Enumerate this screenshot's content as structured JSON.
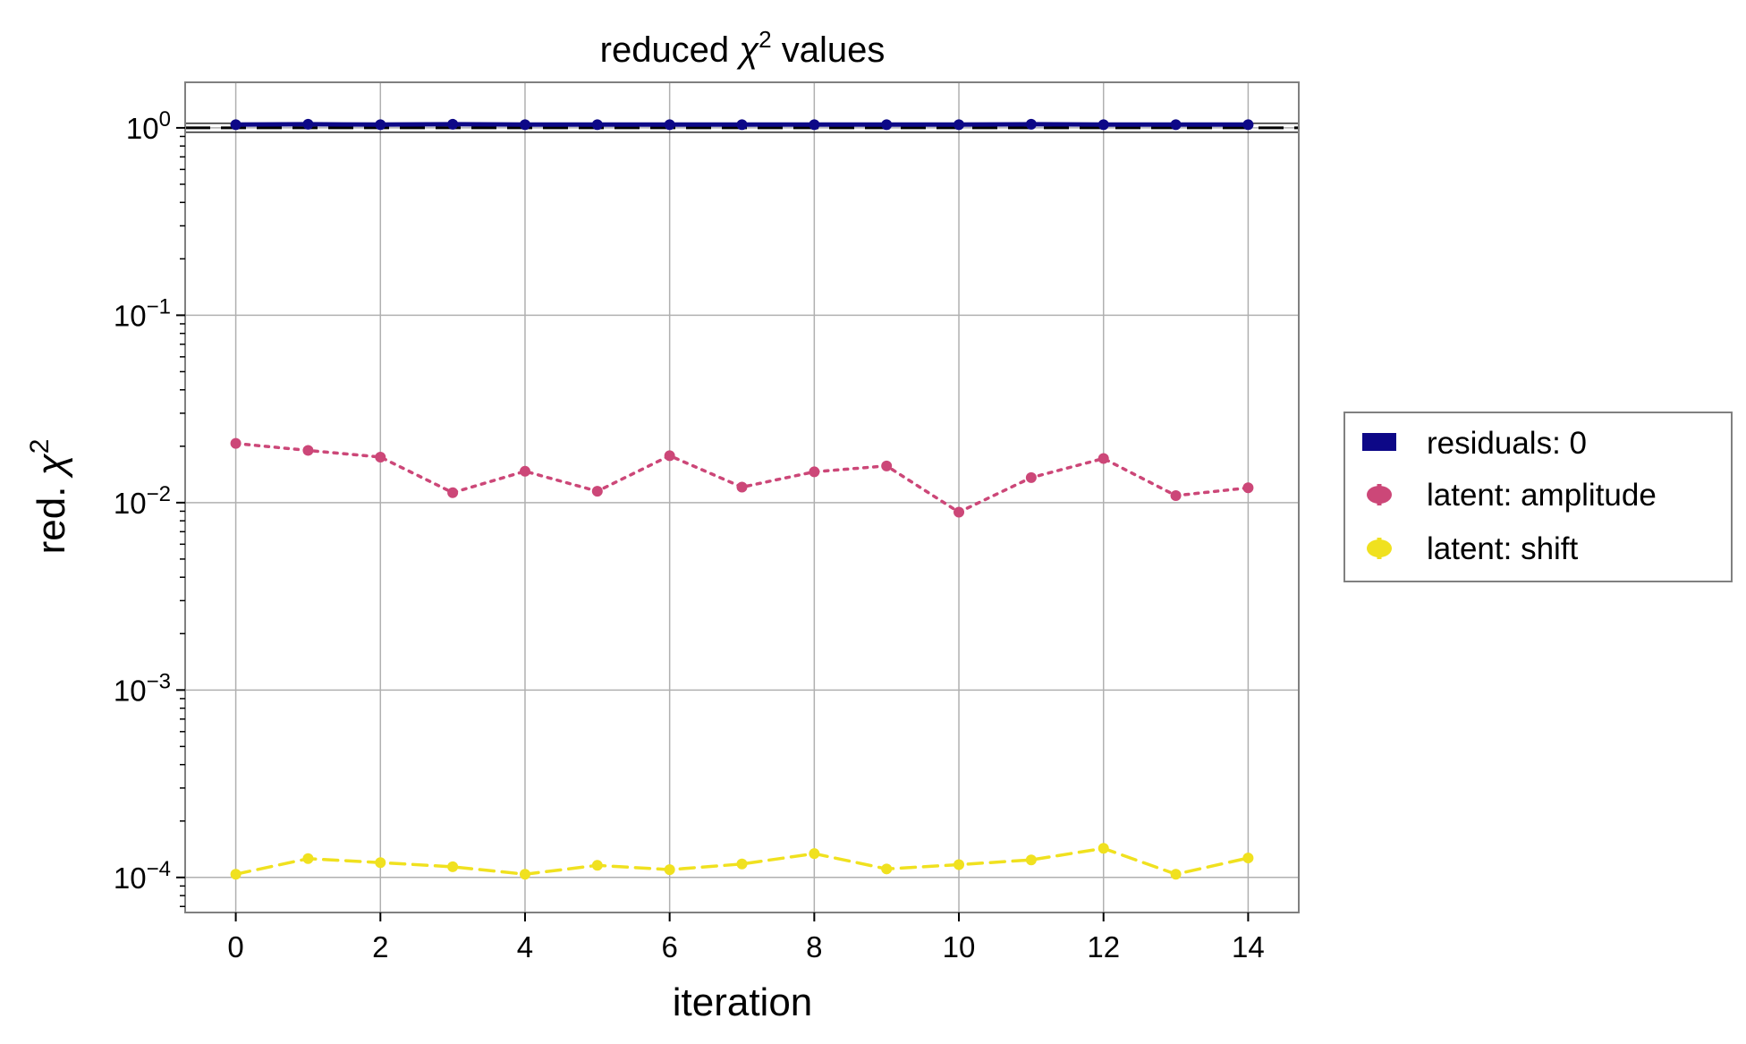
{
  "chart_data": {
    "type": "line",
    "title": "reduced",
    "title_math": {
      "symbol": "χ",
      "superscript": "2"
    },
    "title_suffix": "values",
    "xlabel": "iteration",
    "ylabel": "red.",
    "ylabel_math": {
      "symbol": "χ",
      "superscript": "2"
    },
    "y_scale": "log",
    "xlim": [
      -0.7,
      14.7
    ],
    "ylim": [
      6.5e-05,
      1.75
    ],
    "grid": true,
    "x_ticks": [
      0,
      2,
      4,
      6,
      8,
      10,
      12,
      14
    ],
    "x_tick_labels": [
      "0",
      "2",
      "4",
      "6",
      "8",
      "10",
      "12",
      "14"
    ],
    "y_ticks": [
      {
        "value": 1,
        "base": "10",
        "exp": "0"
      },
      {
        "value": 0.1,
        "base": "10",
        "exp": "−1"
      },
      {
        "value": 0.01,
        "base": "10",
        "exp": "−2"
      },
      {
        "value": 0.001,
        "base": "10",
        "exp": "−3"
      },
      {
        "value": 0.0001,
        "base": "10",
        "exp": "−4"
      }
    ],
    "reference_line": {
      "y": 1,
      "style": "dashed",
      "color": "#000000"
    },
    "legend_position": "center-right-outside",
    "x": [
      0,
      1,
      2,
      3,
      4,
      5,
      6,
      7,
      8,
      9,
      10,
      11,
      12,
      13,
      14
    ],
    "series": [
      {
        "name": "residuals: 0",
        "color": "#0d0887",
        "line_style": "solid",
        "legend_marker": "rect",
        "values": [
          1.04,
          1.045,
          1.04,
          1.045,
          1.04,
          1.04,
          1.04,
          1.04,
          1.04,
          1.04,
          1.04,
          1.045,
          1.04,
          1.04,
          1.04
        ]
      },
      {
        "name": "latent: amplitude",
        "color": "#cc4778",
        "line_style": "dotted",
        "legend_marker": "errorbar-dot",
        "values": [
          0.0207,
          0.019,
          0.0175,
          0.0113,
          0.0147,
          0.0115,
          0.0178,
          0.0121,
          0.0146,
          0.0157,
          0.0089,
          0.0136,
          0.0172,
          0.0109,
          0.012
        ]
      },
      {
        "name": "latent: shift",
        "color": "#f0e11f",
        "line_style": "dashed",
        "legend_marker": "errorbar-dot",
        "values": [
          0.000104,
          0.000126,
          0.00012,
          0.000114,
          0.000104,
          0.000116,
          0.00011,
          0.000118,
          0.000134,
          0.000111,
          0.000117,
          0.000124,
          0.000143,
          0.000104,
          0.000127
        ]
      }
    ]
  }
}
